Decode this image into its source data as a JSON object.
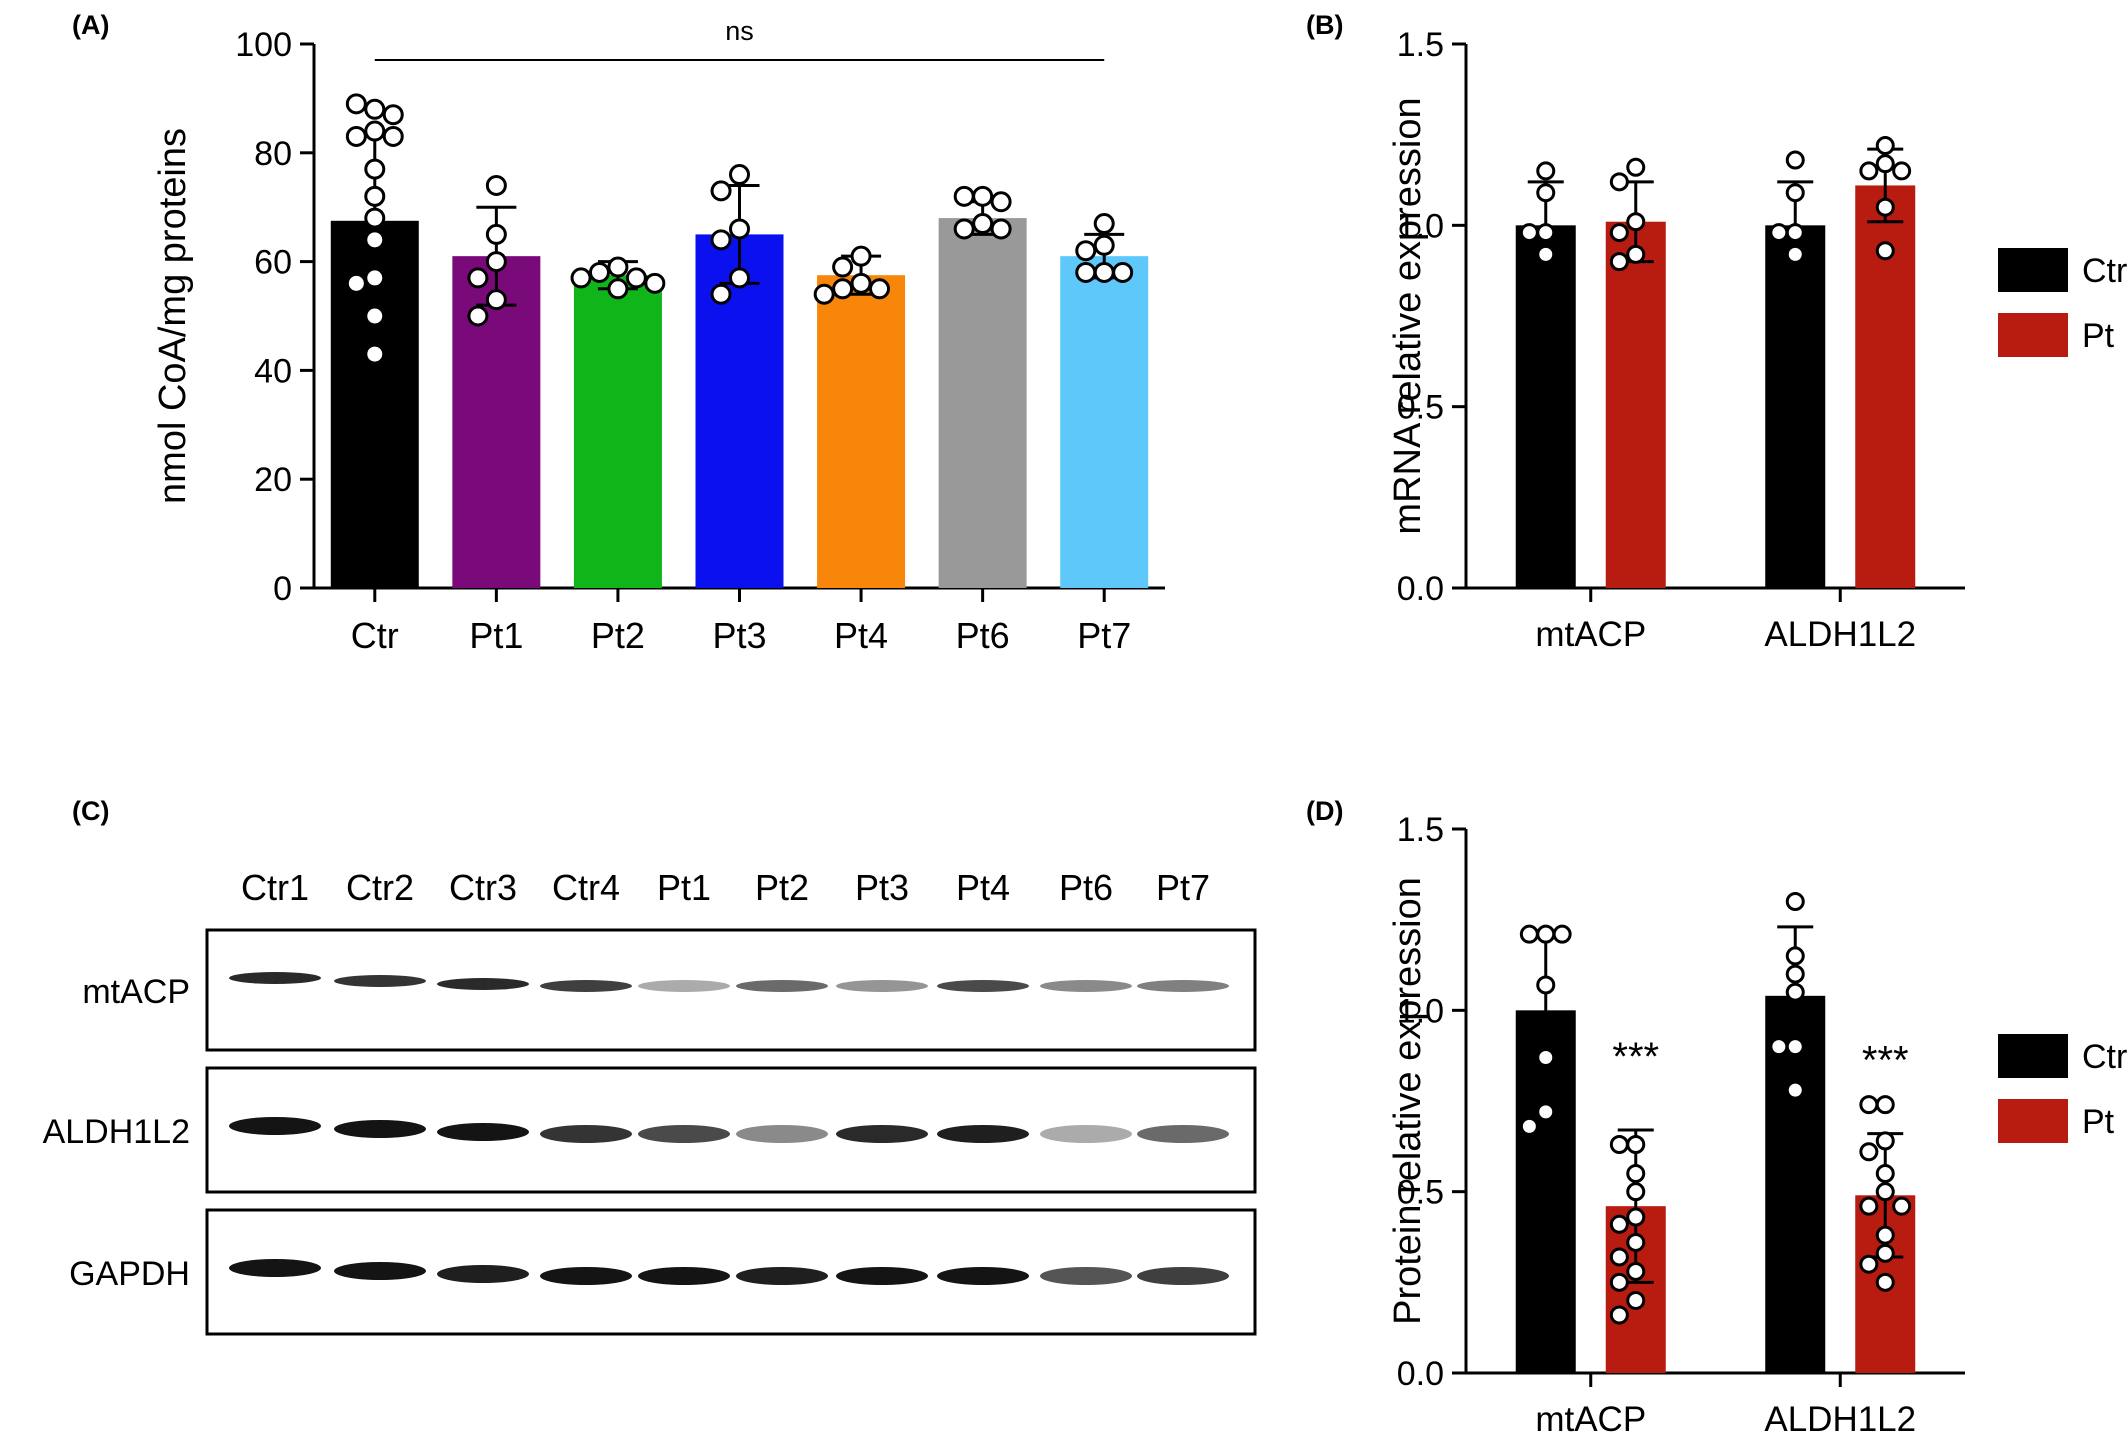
{
  "panels": {
    "A": {
      "label": "(A)"
    },
    "B": {
      "label": "(B)"
    },
    "C": {
      "label": "(C)"
    },
    "D": {
      "label": "(D)"
    }
  },
  "colors": {
    "Ctr": "#000000",
    "Pt1": "#7a0a7a",
    "Pt2": "#10b51a",
    "Pt3": "#0a10ee",
    "Pt4": "#f7860a",
    "Pt6": "#999999",
    "Pt7": "#5fc8fb",
    "Pt": "#b81b10"
  },
  "chart_data": [
    {
      "panel": "A",
      "type": "bar",
      "title": "",
      "xlabel": "",
      "ylabel": "nmol CoA/mg proteins",
      "ylim": [
        0,
        100
      ],
      "yticks": [
        0,
        20,
        40,
        60,
        80,
        100
      ],
      "categories": [
        "Ctr",
        "Pt1",
        "Pt2",
        "Pt3",
        "Pt4",
        "Pt6",
        "Pt7"
      ],
      "values": [
        67.5,
        61,
        57.5,
        65,
        57.5,
        68,
        61
      ],
      "sd": [
        15.5,
        9,
        2.5,
        9,
        3.5,
        3,
        4
      ],
      "points": [
        [
          88,
          89,
          87,
          84,
          83,
          83,
          77,
          72,
          68,
          64,
          57,
          56,
          50,
          43
        ],
        [
          74,
          65,
          60,
          57,
          53,
          50
        ],
        [
          59,
          58,
          57,
          57,
          56,
          55
        ],
        [
          76,
          73,
          66,
          64,
          57,
          54
        ],
        [
          61,
          59,
          56,
          55,
          55,
          54
        ],
        [
          72,
          72,
          71,
          67,
          66,
          66
        ],
        [
          67,
          63,
          62,
          58,
          58,
          58
        ]
      ],
      "annotation": "ns"
    },
    {
      "panel": "B",
      "type": "bar",
      "title": "",
      "xlabel": "",
      "ylabel": "mRNA relative expression",
      "ylim": [
        0,
        1.5
      ],
      "yticks": [
        "0.0",
        "0.5",
        "1.0",
        "1.5"
      ],
      "categories": [
        "mtACP",
        "ALDH1L2"
      ],
      "legend_position": "right",
      "series": [
        {
          "name": "Ctr",
          "values": [
            1.0,
            1.0
          ],
          "sd": [
            0.12,
            0.12
          ],
          "points": [
            [
              1.15,
              1.09,
              0.98,
              0.98,
              0.92
            ],
            [
              1.18,
              1.09,
              0.98,
              0.98,
              0.92
            ]
          ]
        },
        {
          "name": "Pt",
          "values": [
            1.01,
            1.11
          ],
          "sd": [
            0.11,
            0.1
          ],
          "points": [
            [
              1.16,
              1.12,
              1.01,
              0.98,
              0.92,
              0.9
            ],
            [
              1.22,
              1.17,
              1.15,
              1.15,
              1.05,
              0.93
            ]
          ]
        }
      ]
    },
    {
      "panel": "C",
      "type": "other",
      "lanes": [
        "Ctr1",
        "Ctr2",
        "Ctr3",
        "Ctr4",
        "Pt1",
        "Pt2",
        "Pt3",
        "Pt4",
        "Pt6",
        "Pt7"
      ],
      "rows": [
        {
          "name": "mtACP",
          "intensity": [
            0.9,
            0.85,
            0.9,
            0.8,
            0.3,
            0.6,
            0.4,
            0.75,
            0.45,
            0.5
          ]
        },
        {
          "name": "ALDH1L2",
          "intensity": [
            1.0,
            1.0,
            1.0,
            0.85,
            0.75,
            0.45,
            0.9,
            0.95,
            0.3,
            0.6
          ]
        },
        {
          "name": "GAPDH",
          "intensity": [
            1.0,
            1.0,
            0.95,
            1.0,
            1.0,
            0.95,
            1.0,
            1.0,
            0.7,
            0.8
          ]
        }
      ]
    },
    {
      "panel": "D",
      "type": "bar",
      "title": "",
      "xlabel": "",
      "ylabel": "Protein relative expression",
      "ylim": [
        0,
        1.5
      ],
      "yticks": [
        "0.0",
        "0.5",
        "1.0",
        "1.5"
      ],
      "categories": [
        "mtACP",
        "ALDH1L2"
      ],
      "legend_position": "right",
      "significance": [
        "***",
        "***"
      ],
      "series": [
        {
          "name": "Ctr",
          "values": [
            1.0,
            1.04
          ],
          "sd": [
            0.21,
            0.19
          ],
          "points": [
            [
              1.21,
              1.21,
              1.21,
              1.07,
              0.87,
              0.72,
              0.68
            ],
            [
              1.3,
              1.15,
              1.1,
              1.05,
              0.9,
              0.9,
              0.78
            ]
          ]
        },
        {
          "name": "Pt",
          "values": [
            0.46,
            0.49
          ],
          "sd": [
            0.21,
            0.17
          ],
          "points": [
            [
              0.63,
              0.63,
              0.55,
              0.5,
              0.43,
              0.41,
              0.36,
              0.32,
              0.28,
              0.25,
              0.2,
              0.16
            ],
            [
              0.74,
              0.74,
              0.64,
              0.61,
              0.55,
              0.5,
              0.46,
              0.46,
              0.38,
              0.33,
              0.3,
              0.25
            ]
          ]
        }
      ]
    }
  ]
}
